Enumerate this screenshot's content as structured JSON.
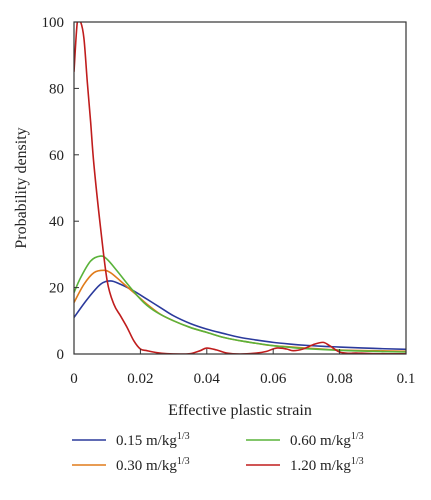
{
  "chart_data": {
    "type": "line",
    "title": "",
    "xlabel": "Effective plastic strain",
    "ylabel": "Probability density",
    "xlim": [
      0,
      0.1
    ],
    "ylim": [
      0,
      100
    ],
    "xticks": [
      0,
      0.02,
      0.04,
      0.06,
      0.08,
      0.1
    ],
    "xtick_labels": [
      "0",
      "0.02",
      "0.04",
      "0.06",
      "0.08",
      "0.1"
    ],
    "yticks": [
      0,
      20,
      40,
      60,
      80,
      100
    ],
    "ytick_labels": [
      "0",
      "20",
      "40",
      "60",
      "80",
      "100"
    ],
    "grid": false,
    "legend_position": "bottom",
    "series": [
      {
        "name": "0.15 m/kg1/3",
        "label_base": "0.15 m/kg",
        "label_sup": "1/3",
        "color": "#2b3a9c",
        "x": [
          0,
          0.004,
          0.008,
          0.011,
          0.014,
          0.018,
          0.022,
          0.026,
          0.03,
          0.035,
          0.04,
          0.045,
          0.05,
          0.055,
          0.06,
          0.065,
          0.07,
          0.075,
          0.08,
          0.09,
          0.1
        ],
        "y": [
          11,
          16.5,
          21,
          22,
          21,
          19,
          16.5,
          14,
          11.5,
          9.2,
          7.5,
          6.2,
          5,
          4.2,
          3.5,
          3,
          2.6,
          2.3,
          2.1,
          1.7,
          1.4
        ]
      },
      {
        "name": "0.30 m/kg1/3",
        "label_base": "0.30 m/kg",
        "label_sup": "1/3",
        "color": "#e07b1a",
        "x": [
          0,
          0.003,
          0.006,
          0.009,
          0.011,
          0.014,
          0.018,
          0.022,
          0.026,
          0.03,
          0.035,
          0.04,
          0.045,
          0.05,
          0.055,
          0.06,
          0.07,
          0.08,
          0.09,
          0.1
        ],
        "y": [
          15.5,
          21,
          24.5,
          25.2,
          24.5,
          22,
          18.5,
          15,
          12,
          10,
          8,
          6.5,
          5,
          4,
          3.2,
          2.5,
          1.8,
          1.2,
          1,
          0.8
        ]
      },
      {
        "name": "0.60 m/kg1/3",
        "label_base": "0.60 m/kg",
        "label_sup": "1/3",
        "color": "#5ab33a",
        "x": [
          0,
          0.002,
          0.005,
          0.008,
          0.01,
          0.013,
          0.017,
          0.021,
          0.025,
          0.03,
          0.035,
          0.04,
          0.045,
          0.05,
          0.055,
          0.06,
          0.065,
          0.07,
          0.08,
          0.09,
          0.1
        ],
        "y": [
          18.5,
          23,
          28,
          29.5,
          28.5,
          25,
          20,
          15.5,
          12.5,
          10,
          8,
          6.5,
          5,
          4,
          3.2,
          2.5,
          2,
          1.6,
          1.1,
          0.8,
          0.6
        ]
      },
      {
        "name": "1.20 m/kg1/3",
        "label_base": "1.20 m/kg",
        "label_sup": "1/3",
        "color": "#c01d1d",
        "x": [
          0,
          0.001,
          0.002,
          0.003,
          0.004,
          0.005,
          0.006,
          0.008,
          0.01,
          0.012,
          0.014,
          0.016,
          0.018,
          0.02,
          0.022,
          0.025,
          0.028,
          0.032,
          0.035,
          0.038,
          0.04,
          0.043,
          0.046,
          0.05,
          0.055,
          0.058,
          0.061,
          0.064,
          0.066,
          0.069,
          0.072,
          0.075,
          0.077,
          0.08,
          0.083,
          0.085,
          0.09,
          0.1
        ],
        "y": [
          85,
          100,
          100,
          95,
          82,
          70,
          57,
          38,
          22,
          15,
          11.5,
          8,
          4,
          1.5,
          1,
          0.4,
          0.1,
          0,
          0.1,
          1,
          1.8,
          1.2,
          0.3,
          0,
          0.3,
          0.8,
          1.8,
          1.5,
          1,
          1.5,
          2.8,
          3.5,
          2.5,
          0.6,
          0.2,
          0.3,
          0.1,
          0.05
        ]
      }
    ]
  }
}
